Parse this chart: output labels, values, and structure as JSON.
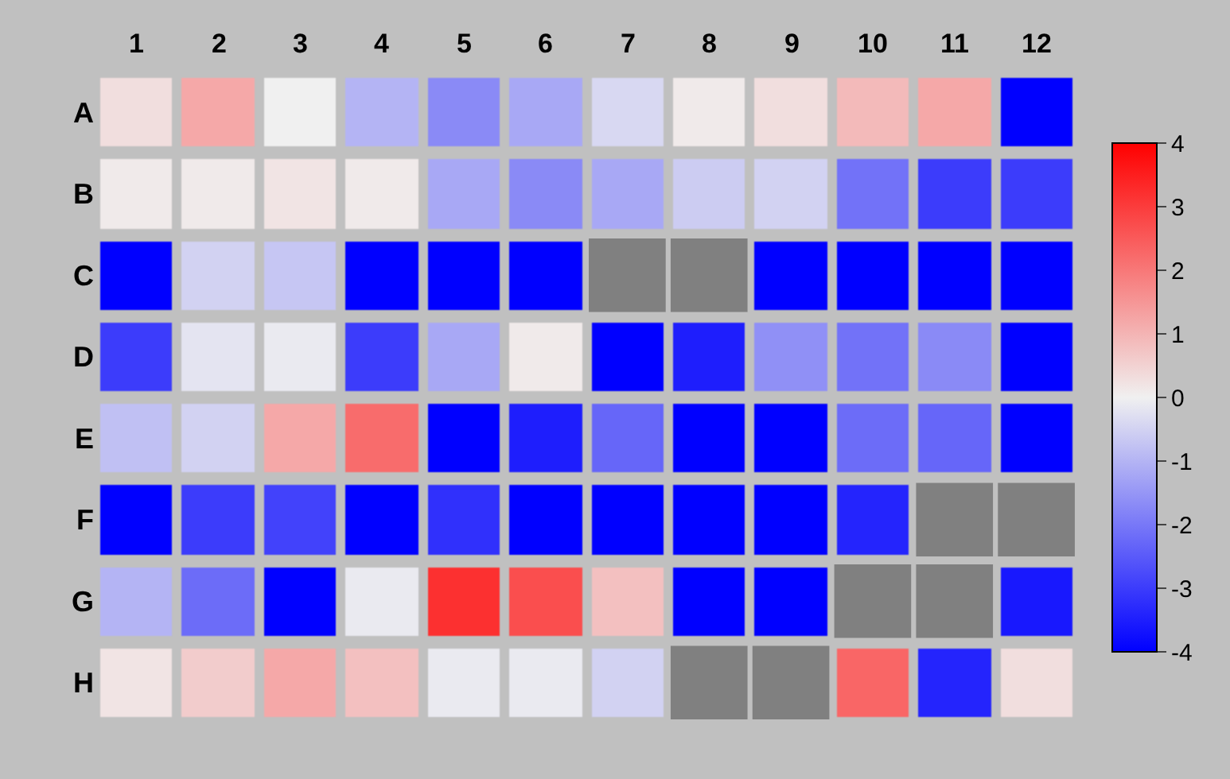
{
  "chart_data": {
    "type": "heatmap",
    "categories": [
      "1",
      "2",
      "3",
      "4",
      "5",
      "6",
      "7",
      "8",
      "9",
      "10",
      "11",
      "12"
    ],
    "y_categories": [
      "A",
      "B",
      "C",
      "D",
      "E",
      "F",
      "G",
      "H"
    ],
    "cells": [
      [
        0.3,
        1.2,
        0,
        -1,
        -1.7,
        -1.2,
        -0.4,
        0.1,
        0.3,
        0.9,
        1.2,
        -4
      ],
      [
        0.1,
        0.1,
        0.2,
        0.1,
        -1.2,
        -1.7,
        -1.2,
        -0.6,
        -0.5,
        -2.1,
        -3,
        -3
      ],
      [
        -4,
        -0.5,
        -0.7,
        -4,
        -4,
        -4,
        null,
        null,
        -4,
        -4,
        -4,
        -4
      ],
      [
        -3,
        -0.2,
        -0.1,
        -3,
        -1.2,
        0.1,
        -4,
        -3.5,
        -1.6,
        -2.1,
        -1.7,
        -4
      ],
      [
        -0.8,
        -0.5,
        1.2,
        2.2,
        -4,
        -3.5,
        -2.3,
        -4,
        -4,
        -2.2,
        -2.3,
        -4
      ],
      [
        -4,
        -3,
        -2.9,
        -4,
        -3.2,
        -4,
        -4,
        -4,
        -4,
        -3.4,
        null,
        null
      ],
      [
        -1,
        -2.2,
        -4,
        -0.1,
        3.2,
        2.7,
        0.8,
        -4,
        -4,
        null,
        null,
        -3.6
      ],
      [
        0.2,
        0.6,
        1.2,
        0.8,
        -0.1,
        -0.1,
        -0.5,
        null,
        null,
        2.3,
        -3.4,
        0.3
      ]
    ],
    "clim": [
      -4,
      4
    ],
    "cticks": [
      -4,
      -3,
      -2,
      -1,
      0,
      1,
      2,
      3,
      4
    ]
  }
}
